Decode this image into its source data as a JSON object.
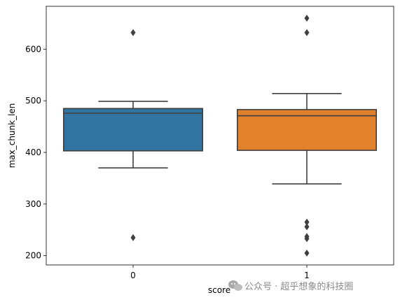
{
  "chart_data": {
    "type": "box",
    "title": "",
    "xlabel": "score",
    "ylabel": "max_chunk_len",
    "categories": [
      "0",
      "1"
    ],
    "ylim": [
      182,
      683
    ],
    "yticks": [
      200,
      300,
      400,
      500,
      600
    ],
    "grid": false,
    "boxes": [
      {
        "category": "0",
        "color": "#3274a1",
        "whisker_low": 370,
        "q1": 403,
        "median": 476,
        "q3": 485,
        "whisker_high": 499,
        "outliers": [
          632,
          235
        ]
      },
      {
        "category": "1",
        "color": "#e1812c",
        "whisker_low": 339,
        "q1": 404,
        "median": 471,
        "q3": 483,
        "whisker_high": 514,
        "outliers": [
          660,
          632,
          265,
          256,
          237,
          233,
          205
        ]
      }
    ]
  },
  "watermark": {
    "text": "公众号 · 超乎想象的科技圈",
    "icon": "wechat-icon"
  },
  "colors": {
    "box_line": "#3f3f3f",
    "axis": "#000000"
  }
}
